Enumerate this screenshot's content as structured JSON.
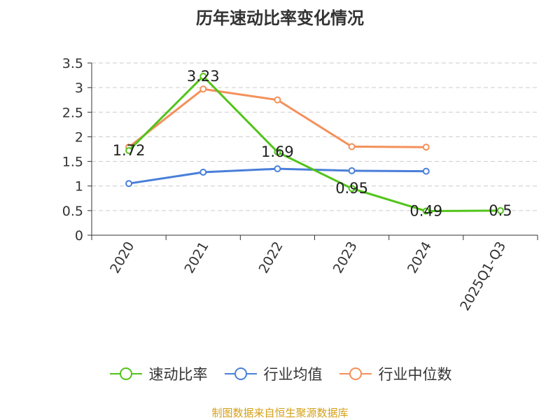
{
  "chart_data": {
    "type": "line",
    "title": "历年速动比率变化情况",
    "categories": [
      "2020",
      "2021",
      "2022",
      "2023",
      "2024",
      "2025Q1-Q3"
    ],
    "ylim": [
      0,
      3.5
    ],
    "yticks": [
      "0",
      "0.5",
      "1",
      "1.5",
      "2",
      "2.5",
      "3",
      "3.5"
    ],
    "grid": true,
    "legend_position": "bottom",
    "series": [
      {
        "name": "速动比率",
        "color": "#52c41a",
        "values": [
          1.72,
          3.23,
          1.69,
          0.95,
          0.49,
          0.5
        ],
        "labels": [
          "1.72",
          "3.23",
          "1.69",
          "0.95",
          "0.49",
          "0.5"
        ]
      },
      {
        "name": "行业均值",
        "color": "#4a7fd9",
        "values": [
          1.05,
          1.28,
          1.35,
          1.31,
          1.3,
          null
        ]
      },
      {
        "name": "行业中位数",
        "color": "#f4905a",
        "values": [
          1.79,
          2.97,
          2.75,
          1.8,
          1.79,
          null
        ]
      }
    ]
  },
  "footer": {
    "source": "制图数据来自恒生聚源数据库"
  }
}
